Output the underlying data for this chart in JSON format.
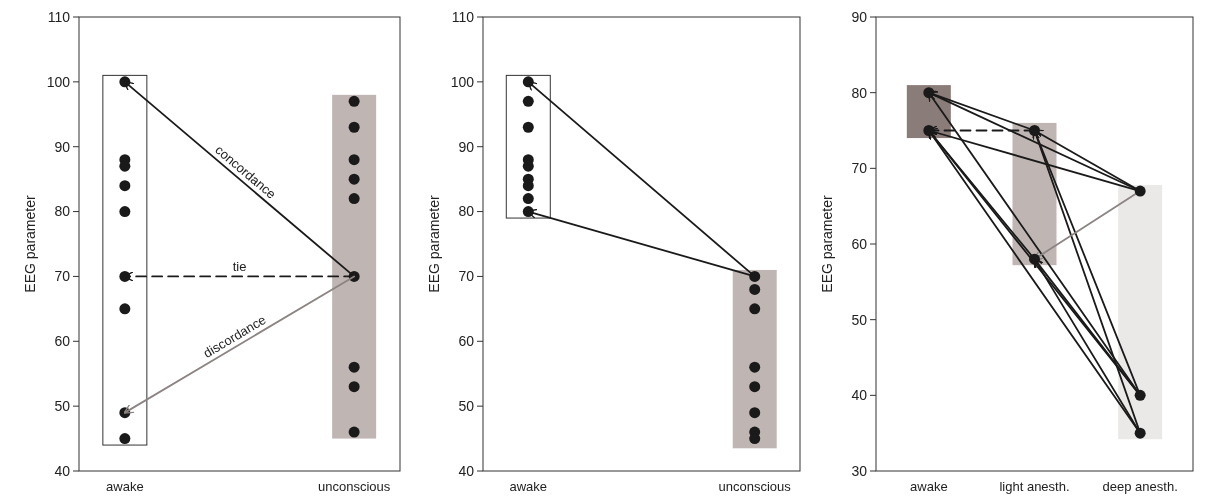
{
  "chart_data": [
    {
      "type": "scatter",
      "categories": [
        "awake",
        "unconscious"
      ],
      "ylabel": "EEG parameter",
      "ylim": [
        40,
        110
      ],
      "yticks": [
        40,
        50,
        60,
        70,
        80,
        90,
        100,
        110
      ],
      "series": [
        {
          "type": "bar",
          "base": [
            44,
            45
          ],
          "values": [
            57,
            53
          ],
          "colors": [
            "#ffffff",
            "#bfb6b4"
          ]
        },
        {
          "marker": "circle",
          "color": "#1a1a1a",
          "x": [
            "awake",
            "awake",
            "awake",
            "awake",
            "awake",
            "awake",
            "awake",
            "awake",
            "awake",
            "unconscious",
            "unconscious",
            "unconscious",
            "unconscious",
            "unconscious",
            "unconscious",
            "unconscious",
            "unconscious",
            "unconscious"
          ],
          "values": [
            100,
            88,
            87,
            84,
            80,
            70,
            65,
            49,
            45,
            97,
            93,
            88,
            85,
            82,
            70,
            56,
            53,
            46
          ]
        },
        {
          "type": "line",
          "name": "concordance",
          "color": "#1a1a1a",
          "x": [
            "unconscious",
            "awake"
          ],
          "values": [
            70,
            100
          ]
        },
        {
          "type": "line",
          "name": "tie",
          "color": "#1a1a1a",
          "line_style": "dashed",
          "x": [
            "unconscious",
            "awake"
          ],
          "values": [
            70,
            70
          ]
        },
        {
          "type": "line",
          "name": "discordance",
          "color": "#8c8482",
          "x": [
            "unconscious",
            "awake"
          ],
          "values": [
            70,
            49
          ]
        }
      ]
    },
    {
      "type": "scatter",
      "categories": [
        "awake",
        "unconscious"
      ],
      "ylabel": "EEG parameter",
      "ylim": [
        40,
        110
      ],
      "yticks": [
        40,
        50,
        60,
        70,
        80,
        90,
        100,
        110
      ],
      "series": [
        {
          "type": "bar",
          "base": [
            79,
            43.5
          ],
          "values": [
            22,
            27.5
          ],
          "colors": [
            "#ffffff",
            "#bfb6b4"
          ]
        },
        {
          "marker": "circle",
          "color": "#1a1a1a",
          "x": [
            "awake",
            "awake",
            "awake",
            "awake",
            "awake",
            "awake",
            "awake",
            "awake",
            "awake",
            "unconscious",
            "unconscious",
            "unconscious",
            "unconscious",
            "unconscious",
            "unconscious",
            "unconscious",
            "unconscious"
          ],
          "values": [
            100,
            97,
            93,
            88,
            87,
            85,
            84,
            82,
            80,
            70,
            68,
            65,
            56,
            53,
            49,
            46,
            45
          ]
        },
        {
          "type": "line",
          "color": "#1a1a1a",
          "x": [
            "unconscious",
            "awake"
          ],
          "values": [
            70,
            100
          ]
        },
        {
          "type": "line",
          "color": "#1a1a1a",
          "x": [
            "unconscious",
            "awake"
          ],
          "values": [
            70,
            80
          ]
        }
      ]
    },
    {
      "type": "scatter",
      "categories": [
        "awake",
        "light anesth.",
        "deep anesth."
      ],
      "ylabel": "EEG parameter",
      "ylim": [
        30,
        90
      ],
      "yticks": [
        30,
        40,
        50,
        60,
        70,
        80,
        90
      ],
      "series": [
        {
          "type": "bar",
          "base": [
            74,
            57.2,
            34.2
          ],
          "values": [
            7,
            18.8,
            33.6
          ],
          "colors": [
            "#8a7c78",
            "#bfb6b4",
            "#ebe9e8"
          ]
        },
        {
          "type": "line",
          "color": "#1a1a1a",
          "x": [
            "light anesth.",
            "awake"
          ],
          "values": [
            75,
            80
          ]
        },
        {
          "type": "line",
          "color": "#1a1a1a",
          "x": [
            "deep anesth.",
            "awake"
          ],
          "values": [
            67,
            80
          ]
        },
        {
          "type": "line",
          "color": "#1a1a1a",
          "x": [
            "deep anesth.",
            "awake"
          ],
          "values": [
            40,
            80
          ]
        },
        {
          "type": "line",
          "color": "#1a1a1a",
          "line_style": "dashed",
          "x": [
            "light anesth.",
            "awake"
          ],
          "values": [
            75,
            75
          ]
        },
        {
          "type": "line",
          "color": "#1a1a1a",
          "x": [
            "deep anesth.",
            "awake"
          ],
          "values": [
            67,
            75
          ]
        },
        {
          "type": "line",
          "color": "#1a1a1a",
          "x": [
            "light anesth.",
            "awake"
          ],
          "values": [
            58,
            75
          ]
        },
        {
          "type": "line",
          "color": "#1a1a1a",
          "x": [
            "deep anesth.",
            "awake"
          ],
          "values": [
            40,
            75
          ]
        },
        {
          "type": "line",
          "color": "#1a1a1a",
          "x": [
            "deep anesth.",
            "awake"
          ],
          "values": [
            35,
            75
          ]
        },
        {
          "type": "line",
          "color": "#1a1a1a",
          "x": [
            "deep anesth.",
            "light anesth."
          ],
          "values": [
            67,
            75
          ]
        },
        {
          "type": "line",
          "color": "#1a1a1a",
          "x": [
            "deep anesth.",
            "light anesth."
          ],
          "values": [
            40,
            75
          ]
        },
        {
          "type": "line",
          "color": "#1a1a1a",
          "x": [
            "deep anesth.",
            "light anesth."
          ],
          "values": [
            35,
            75
          ]
        },
        {
          "type": "line",
          "color": "#1a1a1a",
          "x": [
            "deep anesth.",
            "light anesth."
          ],
          "values": [
            40,
            58
          ]
        },
        {
          "type": "line",
          "color": "#1a1a1a",
          "x": [
            "deep anesth.",
            "light anesth."
          ],
          "values": [
            35,
            58
          ]
        },
        {
          "type": "line",
          "color": "#8c8482",
          "x": [
            "deep anesth.",
            "light anesth."
          ],
          "values": [
            67,
            58
          ]
        },
        {
          "marker": "circle",
          "color": "#1a1a1a",
          "x": [
            "awake",
            "awake",
            "light anesth.",
            "light anesth.",
            "deep anesth.",
            "deep anesth.",
            "deep anesth."
          ],
          "values": [
            80,
            75,
            75,
            58,
            67,
            40,
            35
          ]
        }
      ]
    }
  ]
}
